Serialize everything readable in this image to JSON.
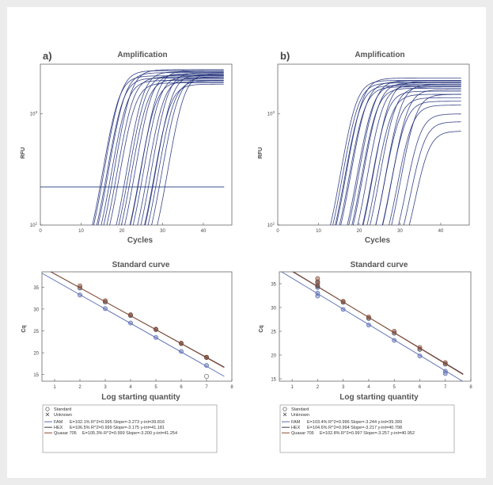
{
  "colors": {
    "fam": "#5a6db3",
    "hex": "#3a3f52",
    "quasar": "#8b4a2f",
    "curve": "#1f2f7a",
    "threshold": "#1f3a7a"
  },
  "amplification": [
    {
      "panel_label": "a)",
      "title": "Amplification",
      "xlabel": "Cycles",
      "ylabel": "RFU",
      "y_log": true,
      "xlim": [
        0,
        47
      ],
      "ylim": [
        100,
        2800
      ],
      "x_ticks": [
        "0",
        "10",
        "20",
        "30",
        "40"
      ],
      "y_ticks": [
        {
          "label": "10",
          "sup": "2"
        },
        {
          "label": "10",
          "sup": "3"
        }
      ],
      "threshold": 220,
      "curve_midpoints": [
        18.5,
        19,
        19.5,
        20,
        20.5,
        21.5,
        22,
        22.5,
        24.5,
        25,
        25.5,
        26.5,
        27.5,
        28,
        28.5,
        29.5,
        30.5,
        31,
        31.5,
        32,
        33,
        34.5
      ],
      "curve_plateaus": [
        2200,
        2450,
        2100,
        2350,
        2000,
        2500,
        2150,
        1900,
        2400,
        2250,
        2050,
        2300,
        1950,
        2450,
        2200,
        2100,
        2350,
        1850,
        2250,
        2000,
        2150,
        2300
      ]
    },
    {
      "panel_label": "b)",
      "title": "Amplification",
      "xlabel": "Cycles",
      "ylabel": "RFU",
      "y_log": true,
      "xlim": [
        0,
        47
      ],
      "ylim": [
        100,
        2800
      ],
      "x_ticks": [
        "0",
        "10",
        "20",
        "30",
        "40"
      ],
      "y_ticks": [
        {
          "label": "10",
          "sup": "2"
        },
        {
          "label": "10",
          "sup": "3"
        }
      ],
      "threshold": null,
      "curve_midpoints": [
        18.5,
        19,
        19.5,
        20,
        20.5,
        21,
        22.5,
        23,
        23.5,
        24,
        25,
        26,
        26.5,
        27,
        28,
        29,
        29.5,
        30.5,
        31,
        32,
        33,
        34,
        35,
        36
      ],
      "curve_plateaus": [
        2000,
        1900,
        1800,
        2100,
        1750,
        1950,
        1850,
        2000,
        1700,
        1900,
        1800,
        1600,
        1950,
        1500,
        1750,
        1400,
        1850,
        1300,
        1650,
        1200,
        1500,
        1000,
        850,
        700
      ]
    }
  ],
  "standard": [
    {
      "title": "Standard curve",
      "xlabel": "Log starting quantity",
      "ylabel": "Cq",
      "xlim": [
        0.5,
        8
      ],
      "ylim": [
        13.5,
        38.5
      ],
      "x_ticks": [
        "1",
        "2",
        "3",
        "4",
        "5",
        "6",
        "7",
        "8"
      ],
      "y_ticks": [
        "15",
        "20",
        "25",
        "30",
        "35"
      ],
      "legend_markers": [
        {
          "symbol": "circle",
          "label": "Standard"
        },
        {
          "symbol": "cross",
          "label": "Unknown"
        }
      ],
      "series": [
        {
          "name": "FAM",
          "stats": "E=102.1% R^2=0.995 Slope=-3.273 y-int=39.816",
          "color_key": "fam",
          "slope": -3.273,
          "intercept": 39.816,
          "x": [
            2,
            3,
            4,
            5,
            6,
            7,
            7
          ],
          "y": [
            33.2,
            30.1,
            26.8,
            23.5,
            20.3,
            17.1,
            14.6
          ]
        },
        {
          "name": "HEX",
          "stats": "E=106.5% R^2=0.999 Slope=-3.175 y-int=41.181",
          "color_key": "hex",
          "slope": -3.175,
          "intercept": 41.181,
          "x": [
            2,
            3,
            4,
            5,
            6,
            7
          ],
          "y": [
            34.8,
            31.6,
            28.5,
            25.3,
            22.1,
            18.9
          ]
        },
        {
          "name": "Quasar 705",
          "stats": "E=105.3% R^2=0.999 Slope=-3.200 y-int=41.254",
          "color_key": "quasar",
          "slope": -3.2,
          "intercept": 41.254,
          "x": [
            2,
            3,
            4,
            5,
            6,
            7
          ],
          "y": [
            35.3,
            31.9,
            28.7,
            25.4,
            22.2,
            19.0
          ]
        }
      ]
    },
    {
      "title": "Standard curve",
      "xlabel": "Log starting quantity",
      "ylabel": "Cq",
      "xlim": [
        0.5,
        8
      ],
      "ylim": [
        14.5,
        37.5
      ],
      "x_ticks": [
        "1",
        "2",
        "3",
        "4",
        "5",
        "6",
        "7",
        "8"
      ],
      "y_ticks": [
        "15",
        "20",
        "25",
        "30",
        "35"
      ],
      "legend_markers": [
        {
          "symbol": "circle",
          "label": "Standard"
        },
        {
          "symbol": "cross",
          "label": "Unknown"
        }
      ],
      "series": [
        {
          "name": "FAM",
          "stats": "E=103.4% R^2=0.996 Slope=-3.244 y-int=39.399",
          "color_key": "fam",
          "slope": -3.244,
          "intercept": 39.399,
          "x": [
            2,
            2,
            2,
            3,
            4,
            5,
            6,
            7,
            7
          ],
          "y": [
            33.0,
            32.4,
            34.2,
            29.6,
            26.3,
            23.1,
            19.8,
            16.6,
            16.1
          ]
        },
        {
          "name": "HEX",
          "stats": "E=104.6% R^2=0.994 Slope=-3.217 y-int=40.798",
          "color_key": "hex",
          "slope": -3.217,
          "intercept": 40.798,
          "x": [
            2,
            2,
            3,
            4,
            5,
            6,
            7
          ],
          "y": [
            34.5,
            35.4,
            31.1,
            27.7,
            24.6,
            21.2,
            18.1
          ]
        },
        {
          "name": "Quasar 705",
          "stats": "E=102.8% R^2=0.997 Slope=-3.257 y-int=40.952",
          "color_key": "quasar",
          "slope": -3.257,
          "intercept": 40.952,
          "x": [
            2,
            2,
            3,
            4,
            5,
            6,
            7
          ],
          "y": [
            35.1,
            36.1,
            31.3,
            28.0,
            25.0,
            21.6,
            18.4
          ]
        }
      ]
    }
  ]
}
